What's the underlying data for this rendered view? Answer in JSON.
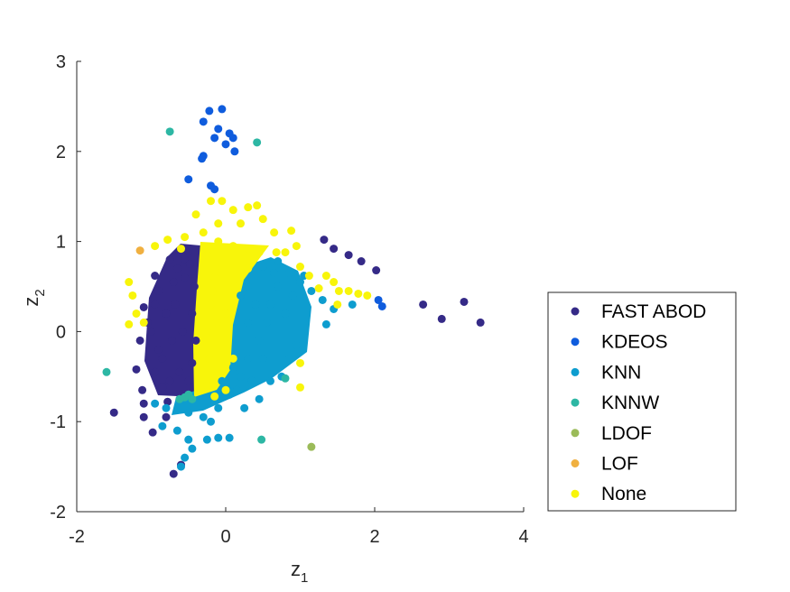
{
  "chart_data": {
    "type": "scatter",
    "title": "",
    "xlabel": {
      "base": "z",
      "sub": "1"
    },
    "ylabel": {
      "base": "z",
      "sub": "2"
    },
    "xlim": [
      -2,
      4
    ],
    "ylim": [
      -2,
      3
    ],
    "xticks": [
      -2,
      0,
      2,
      4
    ],
    "yticks": [
      -2,
      -1,
      0,
      1,
      2,
      3
    ],
    "xtick_labels": [
      "-2",
      "0",
      "2",
      "4"
    ],
    "ytick_labels": [
      "-2",
      "-1",
      "0",
      "1",
      "2",
      "3"
    ],
    "grid": false,
    "legend_position": "right",
    "series": [
      {
        "name": "FAST ABOD",
        "color": "#352a87",
        "points": [
          [
            -0.95,
            0.62
          ],
          [
            -0.9,
            0.45
          ],
          [
            -1.1,
            0.27
          ],
          [
            -1.05,
            0.1
          ],
          [
            -1.15,
            -0.1
          ],
          [
            -1.2,
            -0.42
          ],
          [
            -1.5,
            -0.9
          ],
          [
            -1.1,
            -0.8
          ],
          [
            -1.1,
            -0.95
          ],
          [
            -0.98,
            -1.12
          ],
          [
            -0.8,
            -0.95
          ],
          [
            -0.7,
            -1.58
          ],
          [
            -0.6,
            -1.48
          ],
          [
            -0.5,
            0.9
          ],
          [
            -0.55,
            0.8
          ],
          [
            -0.65,
            0.7
          ],
          [
            -0.8,
            0.2
          ],
          [
            -0.85,
            -0.3
          ],
          [
            -0.75,
            -0.55
          ],
          [
            -0.6,
            -0.7
          ],
          [
            -0.85,
            -0.62
          ],
          [
            -0.9,
            -0.2
          ],
          [
            -0.95,
            0.3
          ],
          [
            -0.7,
            0.55
          ],
          [
            -0.58,
            0.0
          ],
          [
            -0.62,
            -0.45
          ],
          [
            -0.72,
            -0.1
          ],
          [
            -0.68,
            0.3
          ],
          [
            1.32,
            1.02
          ],
          [
            1.45,
            0.92
          ],
          [
            1.65,
            0.85
          ],
          [
            1.82,
            0.78
          ],
          [
            2.02,
            0.68
          ],
          [
            2.65,
            0.3
          ],
          [
            2.9,
            0.14
          ],
          [
            3.2,
            0.33
          ],
          [
            3.42,
            0.1
          ],
          [
            -0.62,
            0.88
          ],
          [
            -0.48,
            0.75
          ],
          [
            -0.55,
            0.6
          ],
          [
            -0.42,
            0.5
          ],
          [
            -0.45,
            0.2
          ],
          [
            -0.4,
            -0.1
          ],
          [
            -0.45,
            -0.35
          ],
          [
            -0.5,
            -0.55
          ],
          [
            -0.75,
            0.8
          ],
          [
            -1.0,
            0.0
          ],
          [
            -0.95,
            -0.45
          ],
          [
            -1.12,
            -0.65
          ],
          [
            -0.78,
            -0.78
          ]
        ]
      },
      {
        "name": "KDEOS",
        "color": "#0f5cdd",
        "points": [
          [
            -0.22,
            2.45
          ],
          [
            -0.05,
            2.47
          ],
          [
            -0.3,
            2.33
          ],
          [
            -0.1,
            2.25
          ],
          [
            0.05,
            2.2
          ],
          [
            -0.15,
            2.15
          ],
          [
            0.1,
            2.15
          ],
          [
            0.0,
            2.08
          ],
          [
            0.12,
            2.0
          ],
          [
            -0.3,
            1.95
          ],
          [
            -0.32,
            1.92
          ],
          [
            -0.5,
            1.69
          ],
          [
            -0.2,
            1.62
          ],
          [
            -0.15,
            1.58
          ],
          [
            2.05,
            0.35
          ],
          [
            2.1,
            0.28
          ]
        ]
      },
      {
        "name": "KNN",
        "color": "#0e9dcf",
        "points": [
          [
            0.5,
            0.72
          ],
          [
            0.7,
            0.78
          ],
          [
            0.85,
            0.65
          ],
          [
            1.0,
            0.55
          ],
          [
            1.15,
            0.45
          ],
          [
            1.3,
            0.35
          ],
          [
            1.45,
            0.25
          ],
          [
            1.7,
            0.3
          ],
          [
            1.35,
            0.08
          ],
          [
            0.3,
            0.5
          ],
          [
            0.4,
            0.3
          ],
          [
            0.55,
            0.1
          ],
          [
            0.45,
            -0.1
          ],
          [
            0.3,
            -0.3
          ],
          [
            0.2,
            -0.5
          ],
          [
            0.05,
            -0.7
          ],
          [
            -0.1,
            -0.85
          ],
          [
            -0.3,
            -0.95
          ],
          [
            -0.5,
            -0.9
          ],
          [
            -0.8,
            -0.85
          ],
          [
            -0.95,
            -0.8
          ],
          [
            -0.65,
            -1.1
          ],
          [
            -0.5,
            -1.2
          ],
          [
            -0.55,
            -1.4
          ],
          [
            -0.6,
            -1.5
          ],
          [
            -0.45,
            -1.3
          ],
          [
            -0.25,
            -1.2
          ],
          [
            -0.1,
            -1.18
          ],
          [
            0.05,
            -1.18
          ],
          [
            0.25,
            -0.85
          ],
          [
            0.45,
            -0.75
          ],
          [
            0.6,
            -0.55
          ],
          [
            0.75,
            -0.5
          ],
          [
            0.85,
            -0.3
          ],
          [
            0.95,
            -0.15
          ],
          [
            0.8,
            0.2
          ],
          [
            0.9,
            0.4
          ],
          [
            0.7,
            0.5
          ],
          [
            0.6,
            0.3
          ],
          [
            0.5,
            -0.3
          ],
          [
            0.35,
            -0.55
          ],
          [
            0.15,
            -0.65
          ],
          [
            -0.05,
            -0.55
          ],
          [
            0.1,
            -0.4
          ],
          [
            0.3,
            0.1
          ],
          [
            0.2,
            0.4
          ],
          [
            0.65,
            0.65
          ],
          [
            1.05,
            0.62
          ],
          [
            -0.2,
            -1.0
          ],
          [
            -0.85,
            -1.05
          ]
        ]
      },
      {
        "name": "KNNW",
        "color": "#2db7a4",
        "points": [
          [
            -0.75,
            2.22
          ],
          [
            0.42,
            2.1
          ],
          [
            -1.6,
            -0.45
          ],
          [
            -0.55,
            -0.73
          ],
          [
            -0.62,
            -0.75
          ],
          [
            -0.5,
            -0.7
          ],
          [
            -0.45,
            -0.75
          ],
          [
            0.8,
            -0.52
          ],
          [
            0.48,
            -1.2
          ]
        ]
      },
      {
        "name": "LDOF",
        "color": "#9bbb59",
        "points": [
          [
            1.15,
            -1.28
          ]
        ]
      },
      {
        "name": "LOF",
        "color": "#f0b040",
        "points": [
          [
            -1.15,
            0.9
          ]
        ]
      },
      {
        "name": "None",
        "color": "#f8f50a",
        "points": [
          [
            -0.4,
            1.3
          ],
          [
            -0.2,
            1.45
          ],
          [
            -0.05,
            1.45
          ],
          [
            0.1,
            1.35
          ],
          [
            0.3,
            1.38
          ],
          [
            0.42,
            1.4
          ],
          [
            0.5,
            1.25
          ],
          [
            0.2,
            1.2
          ],
          [
            -0.1,
            1.2
          ],
          [
            -0.3,
            1.1
          ],
          [
            -0.1,
            1.0
          ],
          [
            0.1,
            0.95
          ],
          [
            0.3,
            0.92
          ],
          [
            0.45,
            0.88
          ],
          [
            0.65,
            1.1
          ],
          [
            0.88,
            1.12
          ],
          [
            0.95,
            0.95
          ],
          [
            0.8,
            0.88
          ],
          [
            0.68,
            0.88
          ],
          [
            1.0,
            0.72
          ],
          [
            1.12,
            0.62
          ],
          [
            1.25,
            0.48
          ],
          [
            1.35,
            0.62
          ],
          [
            1.45,
            0.55
          ],
          [
            1.52,
            0.45
          ],
          [
            1.65,
            0.45
          ],
          [
            1.78,
            0.42
          ],
          [
            1.9,
            0.4
          ],
          [
            1.5,
            0.3
          ],
          [
            1.0,
            -0.35
          ],
          [
            1.0,
            -0.62
          ],
          [
            -1.3,
            0.55
          ],
          [
            -1.25,
            0.4
          ],
          [
            -1.2,
            0.2
          ],
          [
            -1.1,
            0.1
          ],
          [
            -1.3,
            0.08
          ],
          [
            -0.95,
            0.95
          ],
          [
            -0.78,
            1.02
          ],
          [
            -0.55,
            1.05
          ],
          [
            -0.6,
            0.92
          ],
          [
            -0.25,
            0.85
          ],
          [
            -0.15,
            0.6
          ],
          [
            -0.2,
            0.3
          ],
          [
            -0.25,
            0.0
          ],
          [
            -0.22,
            -0.3
          ],
          [
            -0.25,
            -0.6
          ],
          [
            -0.15,
            -0.72
          ],
          [
            0.0,
            -0.65
          ],
          [
            0.1,
            -0.3
          ],
          [
            0.0,
            0.2
          ],
          [
            0.12,
            0.5
          ],
          [
            0.3,
            0.7
          ],
          [
            -0.05,
            0.7
          ],
          [
            -0.18,
            0.45
          ],
          [
            -0.12,
            0.1
          ],
          [
            -0.1,
            -0.45
          ]
        ]
      }
    ]
  }
}
